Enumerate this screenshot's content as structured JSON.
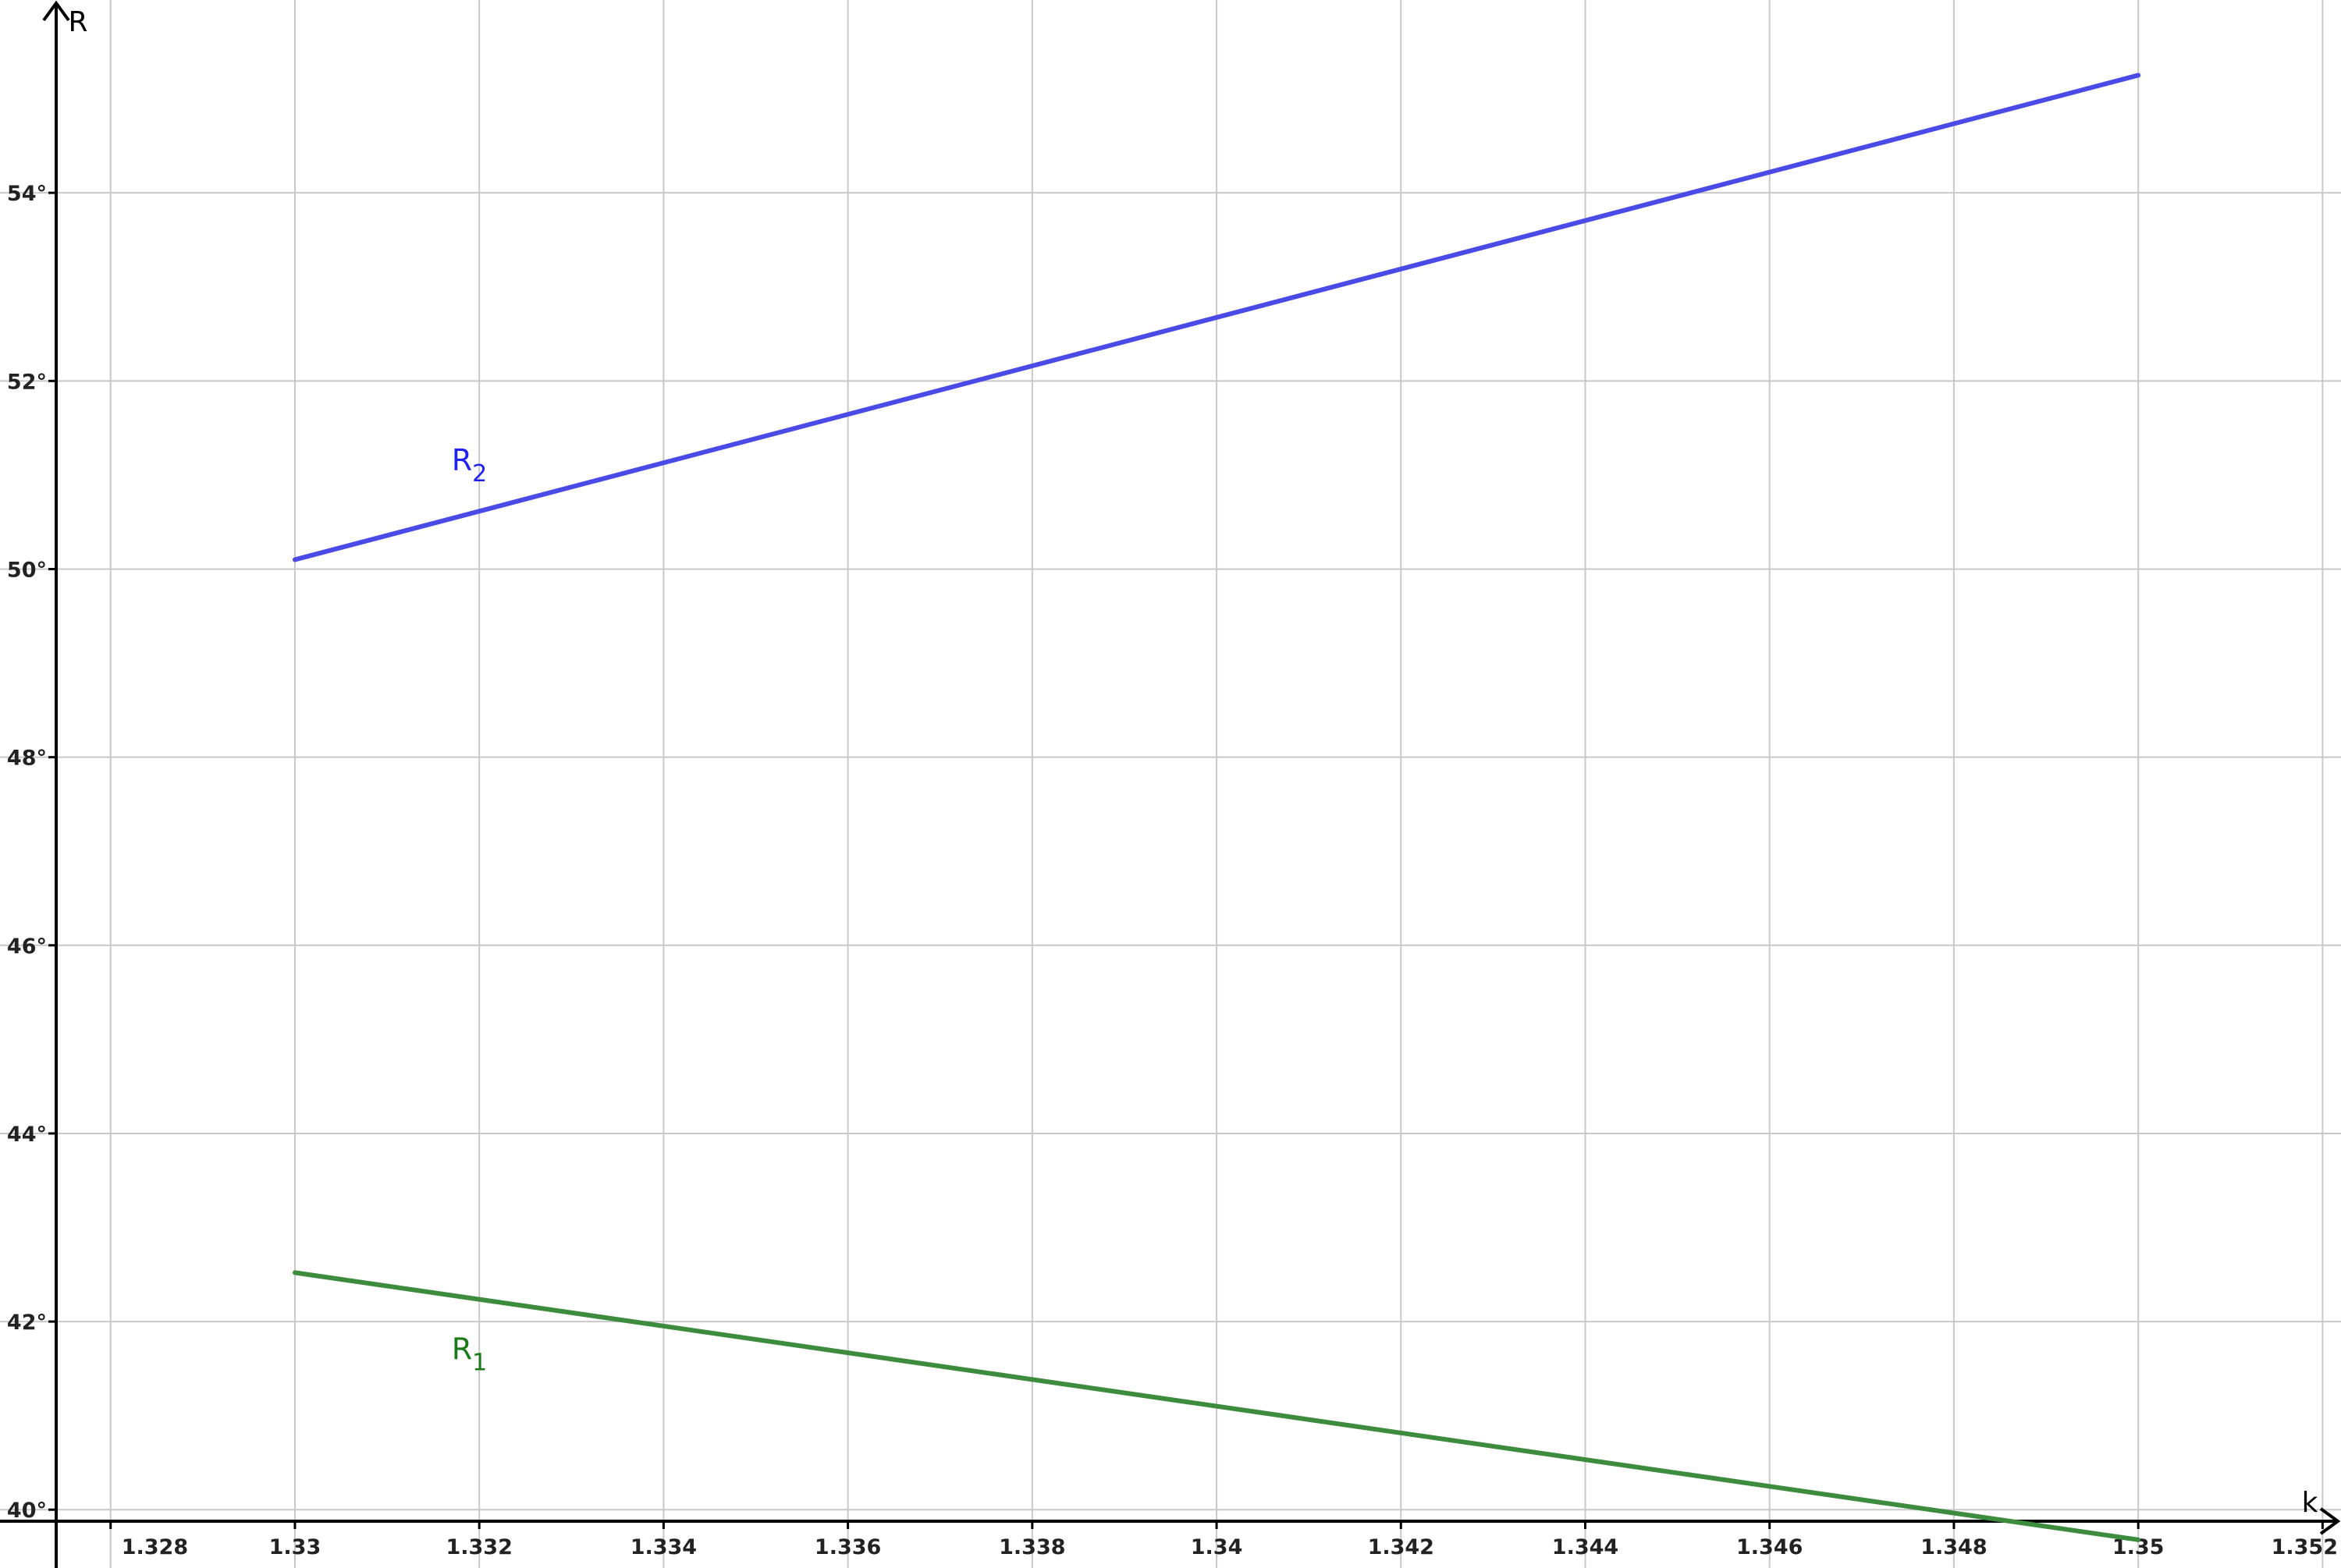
{
  "chart_data": {
    "type": "line",
    "title": "",
    "xlabel": "k",
    "ylabel": "R",
    "xlim": [
      1.3268,
      1.3522
    ],
    "ylim": [
      39.38,
      56.05
    ],
    "grid": true,
    "x_ticks": [
      1.328,
      1.33,
      1.332,
      1.334,
      1.336,
      1.338,
      1.34,
      1.342,
      1.344,
      1.346,
      1.348,
      1.35,
      1.352
    ],
    "x_tick_labels": [
      "1.328",
      "1.33",
      "1.332",
      "1.334",
      "1.336",
      "1.338",
      "1.34",
      "1.342",
      "1.344",
      "1.346",
      "1.348",
      "1.35",
      "1.352"
    ],
    "y_ticks": [
      40,
      42,
      44,
      46,
      48,
      50,
      52,
      54
    ],
    "y_tick_labels": [
      "40°",
      "42°",
      "44°",
      "46°",
      "48°",
      "50°",
      "52°",
      "54°"
    ],
    "series": [
      {
        "name": "R",
        "subscript": "2",
        "color": "#4a4ae6",
        "label_color": "#2222ee",
        "label_pos": [
          1.3317,
          51.05
        ],
        "x": [
          1.33,
          1.35
        ],
        "y": [
          50.1,
          55.25
        ]
      },
      {
        "name": "R",
        "subscript": "1",
        "color": "#3d8b3d",
        "label_color": "#1a7a1a",
        "label_pos": [
          1.3317,
          41.6
        ],
        "x": [
          1.33,
          1.35
        ],
        "y": [
          42.52,
          39.68
        ]
      }
    ]
  }
}
